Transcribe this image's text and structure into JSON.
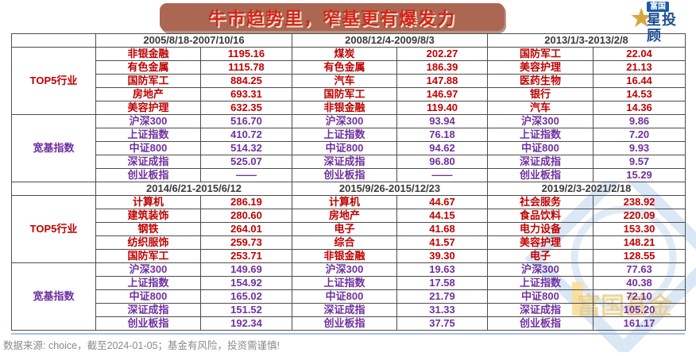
{
  "title": "牛市趋势里，窄基更有爆发力",
  "logo": {
    "brand_badge": "富国",
    "brand_line": "星投顾"
  },
  "watermark_text": "富国基金",
  "footer_note": "数据来源: choice，截至2024-01-05；基金有风险，投资需谨慎!",
  "colors": {
    "title_bg": "#ac6753",
    "title_text": "#d3261a",
    "industry_red": "#c00000",
    "index_purple": "#7030a0",
    "header_text": "#3a3a3a",
    "logo_blue": "#1b5aa8",
    "logo_gold": "#d8a73c",
    "watermark_blue": "#bcd4ee",
    "watermark_gold": "#d9a62e"
  },
  "chart_data": {
    "type": "table",
    "title": "牛市趋势里，窄基更有爆发力",
    "row_groups": [
      "TOP5行业",
      "宽基指数"
    ],
    "banks": [
      {
        "periods": [
          {
            "range": "2005/8/18-2007/10/16",
            "top5_industries": [
              {
                "name": "非银金融",
                "value": "1195.16"
              },
              {
                "name": "有色金属",
                "value": "1115.78"
              },
              {
                "name": "国防军工",
                "value": "884.25"
              },
              {
                "name": "房地产",
                "value": "693.31"
              },
              {
                "name": "美容护理",
                "value": "632.35"
              }
            ],
            "broad_indices": [
              {
                "name": "沪深300",
                "value": "516.70"
              },
              {
                "name": "上证指数",
                "value": "410.72"
              },
              {
                "name": "中证800",
                "value": "514.32"
              },
              {
                "name": "深证成指",
                "value": "525.07"
              },
              {
                "name": "创业板指",
                "value": "——"
              }
            ]
          },
          {
            "range": "2008/12/4-2009/8/3",
            "top5_industries": [
              {
                "name": "煤炭",
                "value": "202.27"
              },
              {
                "name": "有色金属",
                "value": "186.39"
              },
              {
                "name": "汽车",
                "value": "147.88"
              },
              {
                "name": "国防军工",
                "value": "146.97"
              },
              {
                "name": "非银金融",
                "value": "119.40"
              }
            ],
            "broad_indices": [
              {
                "name": "沪深300",
                "value": "93.94"
              },
              {
                "name": "上证指数",
                "value": "76.18"
              },
              {
                "name": "中证800",
                "value": "94.62"
              },
              {
                "name": "深证成指",
                "value": "96.80"
              },
              {
                "name": "创业板指",
                "value": "——"
              }
            ]
          },
          {
            "range": "2013/1/3-2013/2/8",
            "top5_industries": [
              {
                "name": "国防军工",
                "value": "22.04"
              },
              {
                "name": "美容护理",
                "value": "21.13"
              },
              {
                "name": "医药生物",
                "value": "16.44"
              },
              {
                "name": "银行",
                "value": "14.53"
              },
              {
                "name": "汽车",
                "value": "14.36"
              }
            ],
            "broad_indices": [
              {
                "name": "沪深300",
                "value": "9.86"
              },
              {
                "name": "上证指数",
                "value": "7.20"
              },
              {
                "name": "中证800",
                "value": "9.93"
              },
              {
                "name": "深证成指",
                "value": "9.57"
              },
              {
                "name": "创业板指",
                "value": "15.29"
              }
            ]
          }
        ]
      },
      {
        "periods": [
          {
            "range": "2014/6/21-2015/6/12",
            "top5_industries": [
              {
                "name": "计算机",
                "value": "286.19"
              },
              {
                "name": "建筑装饰",
                "value": "280.60"
              },
              {
                "name": "钢铁",
                "value": "264.01"
              },
              {
                "name": "纺织服饰",
                "value": "259.73"
              },
              {
                "name": "国防军工",
                "value": "253.71"
              }
            ],
            "broad_indices": [
              {
                "name": "沪深300",
                "value": "149.69"
              },
              {
                "name": "上证指数",
                "value": "154.92"
              },
              {
                "name": "中证800",
                "value": "165.02"
              },
              {
                "name": "深证成指",
                "value": "151.52"
              },
              {
                "name": "创业板指",
                "value": "192.34"
              }
            ]
          },
          {
            "range": "2015/9/26-2015/12/23",
            "top5_industries": [
              {
                "name": "计算机",
                "value": "44.67"
              },
              {
                "name": "房地产",
                "value": "44.15"
              },
              {
                "name": "电子",
                "value": "41.68"
              },
              {
                "name": "综合",
                "value": "41.57"
              },
              {
                "name": "非银金融",
                "value": "39.30"
              }
            ],
            "broad_indices": [
              {
                "name": "沪深300",
                "value": "19.63"
              },
              {
                "name": "上证指数",
                "value": "17.58"
              },
              {
                "name": "中证800",
                "value": "21.79"
              },
              {
                "name": "深证成指",
                "value": "31.33"
              },
              {
                "name": "创业板指",
                "value": "37.75"
              }
            ]
          },
          {
            "range": "2019/2/3-2021/2/18",
            "top5_industries": [
              {
                "name": "社会服务",
                "value": "238.92"
              },
              {
                "name": "食品饮料",
                "value": "220.09"
              },
              {
                "name": "电力设备",
                "value": "153.30"
              },
              {
                "name": "美容护理",
                "value": "148.21"
              },
              {
                "name": "电子",
                "value": "128.55"
              }
            ],
            "broad_indices": [
              {
                "name": "沪深300",
                "value": "77.63"
              },
              {
                "name": "上证指数",
                "value": "40.38"
              },
              {
                "name": "中证800",
                "value": "72.10"
              },
              {
                "name": "深证成指",
                "value": "105.20"
              },
              {
                "name": "创业板指",
                "value": "161.17"
              }
            ]
          }
        ]
      }
    ]
  }
}
